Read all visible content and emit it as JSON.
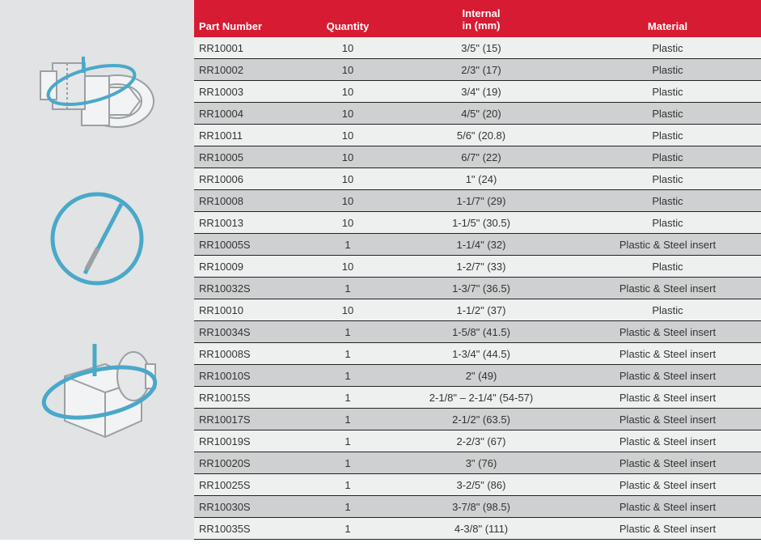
{
  "colors": {
    "header_bg": "#d71b32",
    "header_text": "#ffffff",
    "row_bg": "#eeefef",
    "row_alt_bg": "#cfd0d1",
    "row_text": "#333333",
    "border": "#222222",
    "left_bg": "#e2e3e4",
    "illus_stroke": "#4aa8c9",
    "illus_gray": "#9aa0a4"
  },
  "columns": {
    "part": "Part Number",
    "qty": "Quantity",
    "internal_line1": "Internal",
    "internal_line2": "in (mm)",
    "material": "Material"
  },
  "rows": [
    {
      "part": "RR10001",
      "qty": "10",
      "internal": "3/5\" (15)",
      "material": "Plastic"
    },
    {
      "part": "RR10002",
      "qty": "10",
      "internal": "2/3\" (17)",
      "material": "Plastic"
    },
    {
      "part": "RR10003",
      "qty": "10",
      "internal": "3/4\" (19)",
      "material": "Plastic"
    },
    {
      "part": "RR10004",
      "qty": "10",
      "internal": "4/5\" (20)",
      "material": "Plastic"
    },
    {
      "part": "RR10011",
      "qty": "10",
      "internal": "5/6\" (20.8)",
      "material": "Plastic"
    },
    {
      "part": "RR10005",
      "qty": "10",
      "internal": "6/7\" (22)",
      "material": "Plastic"
    },
    {
      "part": "RR10006",
      "qty": "10",
      "internal": "1\" (24)",
      "material": "Plastic"
    },
    {
      "part": "RR10008",
      "qty": "10",
      "internal": "1-1/7\" (29)",
      "material": "Plastic"
    },
    {
      "part": "RR10013",
      "qty": "10",
      "internal": "1-1/5\" (30.5)",
      "material": "Plastic"
    },
    {
      "part": "RR10005S",
      "qty": "1",
      "internal": "1-1/4\" (32)",
      "material": "Plastic & Steel insert"
    },
    {
      "part": "RR10009",
      "qty": "10",
      "internal": "1-2/7\" (33)",
      "material": "Plastic"
    },
    {
      "part": "RR10032S",
      "qty": "1",
      "internal": "1-3/7\" (36.5)",
      "material": "Plastic & Steel insert"
    },
    {
      "part": "RR10010",
      "qty": "10",
      "internal": "1-1/2\" (37)",
      "material": "Plastic"
    },
    {
      "part": "RR10034S",
      "qty": "1",
      "internal": "1-5/8\" (41.5)",
      "material": "Plastic & Steel insert"
    },
    {
      "part": "RR10008S",
      "qty": "1",
      "internal": "1-3/4\" (44.5)",
      "material": "Plastic & Steel insert"
    },
    {
      "part": "RR10010S",
      "qty": "1",
      "internal": "2\" (49)",
      "material": "Plastic & Steel insert"
    },
    {
      "part": "RR10015S",
      "qty": "1",
      "internal": "2-1/8\" – 2-1/4\" (54-57)",
      "material": "Plastic & Steel insert"
    },
    {
      "part": "RR10017S",
      "qty": "1",
      "internal": "2-1/2\" (63.5)",
      "material": "Plastic & Steel insert"
    },
    {
      "part": "RR10019S",
      "qty": "1",
      "internal": "2-2/3\" (67)",
      "material": "Plastic & Steel insert"
    },
    {
      "part": "RR10020S",
      "qty": "1",
      "internal": "3\" (76)",
      "material": "Plastic & Steel insert"
    },
    {
      "part": "RR10025S",
      "qty": "1",
      "internal": "3-2/5\" (86)",
      "material": "Plastic & Steel insert"
    },
    {
      "part": "RR10030S",
      "qty": "1",
      "internal": "3-7/8\" (98.5)",
      "material": "Plastic & Steel insert"
    },
    {
      "part": "RR10035S",
      "qty": "1",
      "internal": "4-3/8\" (111)",
      "material": "Plastic & Steel insert"
    }
  ]
}
